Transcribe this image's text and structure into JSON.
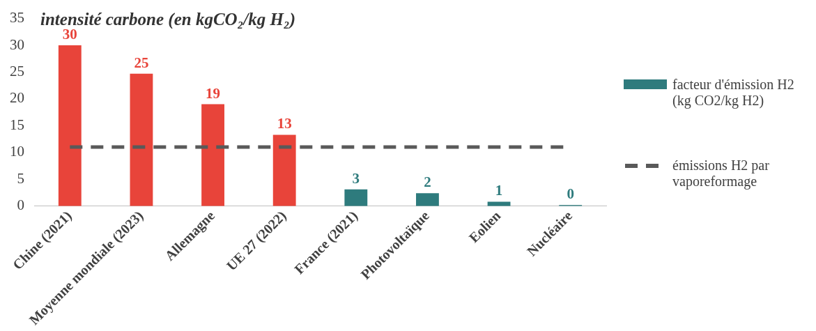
{
  "chart_data": {
    "type": "bar",
    "title": "intensité carbone (en kgCO₂/kg H₂)",
    "categories": [
      "Chine (2021)",
      "Moyenne mondiale (2023)",
      "Allemagne",
      "UE 27 (2022)",
      "France (2021)",
      "Photovoltaïque",
      "Eolien",
      "Nucléaire"
    ],
    "series": [
      {
        "name": "facteur d'émission H2 (kg CO2/kg H2)",
        "color": "#2e7b7d",
        "colors": [
          "#e8443a",
          "#e8443a",
          "#e8443a",
          "#e8443a",
          "#2e7b7d",
          "#2e7b7d",
          "#2e7b7d",
          "#2e7b7d"
        ],
        "values": [
          30,
          24.7,
          19,
          13.3,
          3.1,
          2.4,
          0.8,
          0.2
        ],
        "value_labels": [
          "30",
          "25",
          "19",
          "13",
          "3",
          "2",
          "1",
          "0"
        ]
      }
    ],
    "ref_lines": [
      {
        "axis": "y",
        "value": 11,
        "label": "émissions H2 par vaporeformage",
        "color": "#595959",
        "line_style": "dashed"
      }
    ],
    "ylim": [
      0,
      35
    ],
    "yticks": [
      0,
      5,
      10,
      15,
      20,
      25,
      30,
      35
    ],
    "grid": false,
    "legend": "right"
  }
}
